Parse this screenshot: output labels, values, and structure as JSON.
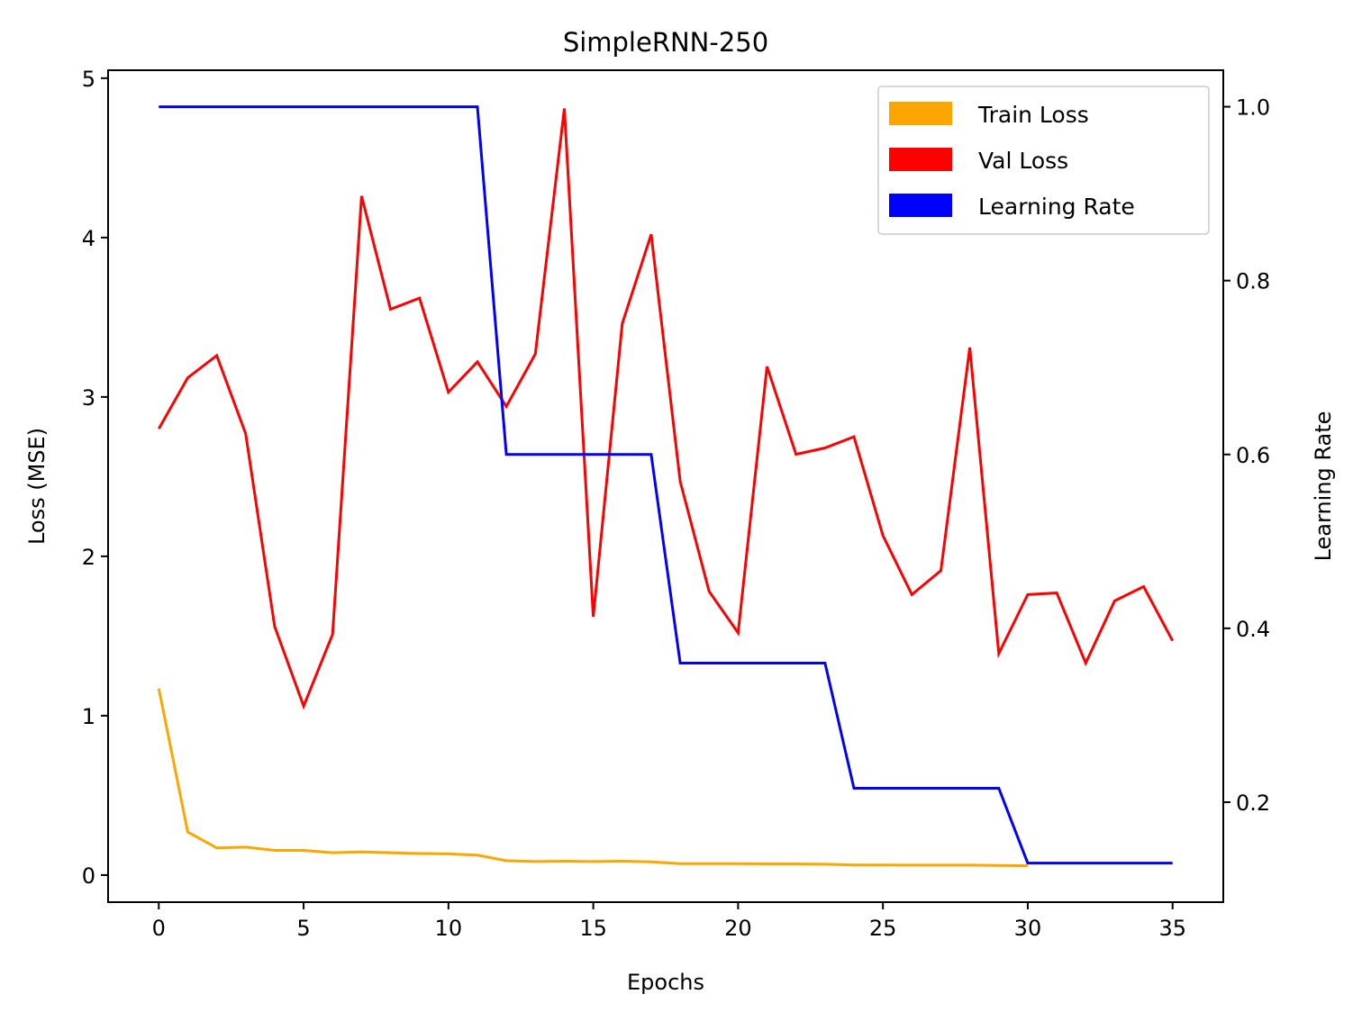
{
  "chart_data": {
    "type": "line",
    "title": "SimpleRNN-250",
    "xlabel": "Epochs",
    "ylabel": "Loss (MSE)",
    "y2label": "Learning Rate",
    "xlim": [
      -1.75,
      36.75
    ],
    "ylim": [
      -0.17,
      5.05
    ],
    "y2lim": [
      0.085,
      1.042
    ],
    "xticks": [
      0,
      5,
      10,
      15,
      20,
      25,
      30,
      35
    ],
    "yticks": [
      0,
      1,
      2,
      3,
      4,
      5
    ],
    "y2ticks": [
      0.2,
      0.4,
      0.6,
      0.8,
      1.0
    ],
    "grid": false,
    "legend_position": "top-right",
    "x": [
      0,
      1,
      2,
      3,
      4,
      5,
      6,
      7,
      8,
      9,
      10,
      11,
      12,
      13,
      14,
      15,
      16,
      17,
      18,
      19,
      20,
      21,
      22,
      23,
      24,
      25,
      26,
      27,
      28,
      29,
      30,
      31,
      32,
      33,
      34,
      35
    ],
    "series": [
      {
        "name": "Train Loss",
        "axis": "left",
        "color": "#ffa500",
        "x": [
          0,
          1,
          2,
          3,
          4,
          5,
          6,
          7,
          8,
          9,
          10,
          11,
          12,
          13,
          14,
          15,
          16,
          17,
          18,
          19,
          20,
          21,
          22,
          23,
          24,
          25,
          26,
          27,
          28,
          29,
          30
        ],
        "values": [
          1.17,
          0.27,
          0.17,
          0.175,
          0.155,
          0.155,
          0.14,
          0.145,
          0.14,
          0.135,
          0.133,
          0.125,
          0.09,
          0.085,
          0.087,
          0.085,
          0.087,
          0.083,
          0.072,
          0.072,
          0.072,
          0.07,
          0.07,
          0.068,
          0.063,
          0.063,
          0.062,
          0.062,
          0.062,
          0.06,
          0.058
        ]
      },
      {
        "name": "Val Loss",
        "axis": "left",
        "color": "#ff0000",
        "x": [
          0,
          1,
          2,
          3,
          4,
          5,
          6,
          7,
          8,
          9,
          10,
          11,
          12,
          13,
          14,
          15,
          16,
          17,
          18,
          19,
          20,
          21,
          22,
          23,
          24,
          25,
          26,
          27,
          28,
          29,
          30,
          31,
          32,
          33,
          34,
          35
        ],
        "values": [
          2.8,
          3.12,
          3.26,
          2.77,
          1.56,
          1.06,
          1.51,
          4.26,
          3.55,
          3.62,
          3.03,
          3.22,
          2.94,
          3.27,
          4.81,
          1.62,
          3.46,
          4.02,
          2.47,
          1.78,
          1.52,
          3.19,
          2.64,
          2.68,
          2.75,
          2.13,
          1.76,
          1.91,
          3.31,
          1.39,
          1.76,
          1.77,
          1.33,
          1.72,
          1.81,
          1.47
        ]
      },
      {
        "name": "Learning Rate",
        "axis": "right",
        "color": "#0000ff",
        "x": [
          0,
          1,
          2,
          3,
          4,
          5,
          6,
          7,
          8,
          9,
          10,
          11,
          12,
          13,
          14,
          15,
          16,
          17,
          18,
          19,
          20,
          21,
          22,
          23,
          24,
          25,
          26,
          27,
          28,
          29,
          30,
          31,
          32,
          33,
          34,
          35
        ],
        "values": [
          1.0,
          1.0,
          1.0,
          1.0,
          1.0,
          1.0,
          1.0,
          1.0,
          1.0,
          1.0,
          1.0,
          1.0,
          0.6,
          0.6,
          0.6,
          0.6,
          0.6,
          0.6,
          0.36,
          0.36,
          0.36,
          0.36,
          0.36,
          0.36,
          0.216,
          0.216,
          0.216,
          0.216,
          0.216,
          0.216,
          0.13,
          0.13,
          0.13,
          0.13,
          0.13,
          0.13
        ]
      }
    ]
  }
}
